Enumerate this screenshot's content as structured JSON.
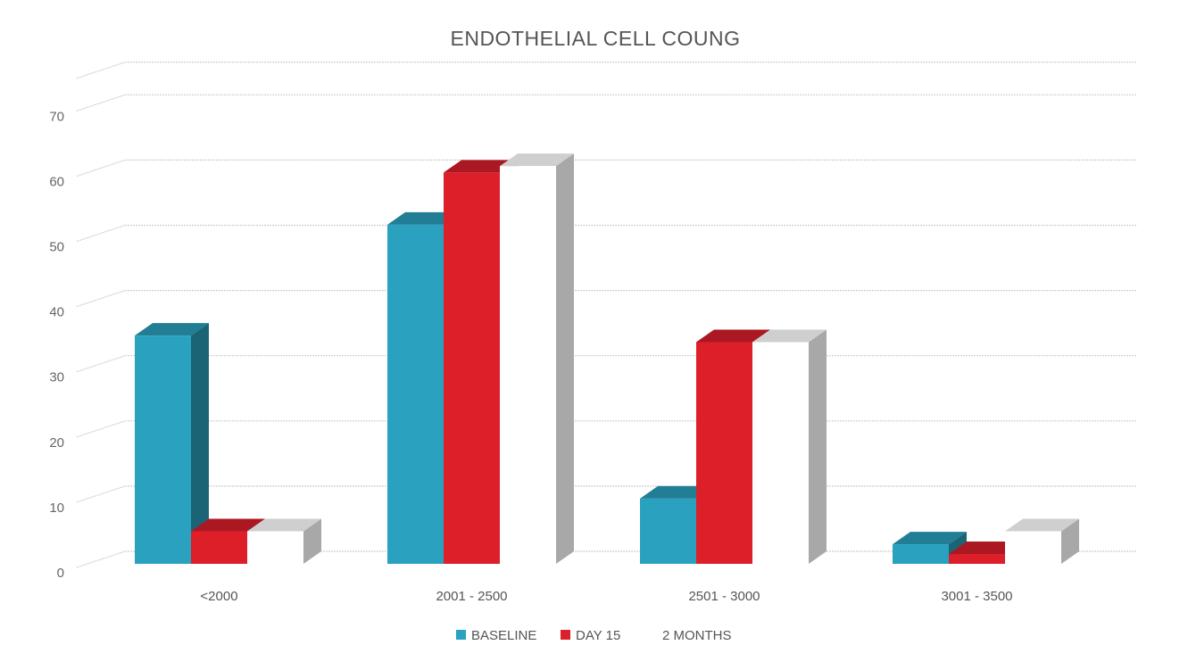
{
  "chart_data": {
    "type": "bar",
    "title": "ENDOTHELIAL CELL COUNG",
    "categories": [
      "<2000",
      "2001 - 2500",
      "2501 - 3000",
      "3001 - 3500"
    ],
    "series": [
      {
        "name": "BASELINE",
        "color": "#2aa2bf",
        "values": [
          35,
          52,
          10,
          3
        ]
      },
      {
        "name": "DAY 15",
        "color": "#dd1f2a",
        "values": [
          5,
          60,
          34,
          1.5
        ]
      },
      {
        "name": "2 MONTHS",
        "color": "#ffffff",
        "values": [
          5,
          61,
          34,
          5
        ]
      }
    ],
    "y_ticks": [
      "0",
      "10",
      "20",
      "30",
      "40",
      "50",
      "60",
      "70"
    ],
    "ylim": [
      0,
      75
    ],
    "xlabel": "",
    "ylabel": "",
    "grid": true,
    "legend_position": "bottom"
  }
}
